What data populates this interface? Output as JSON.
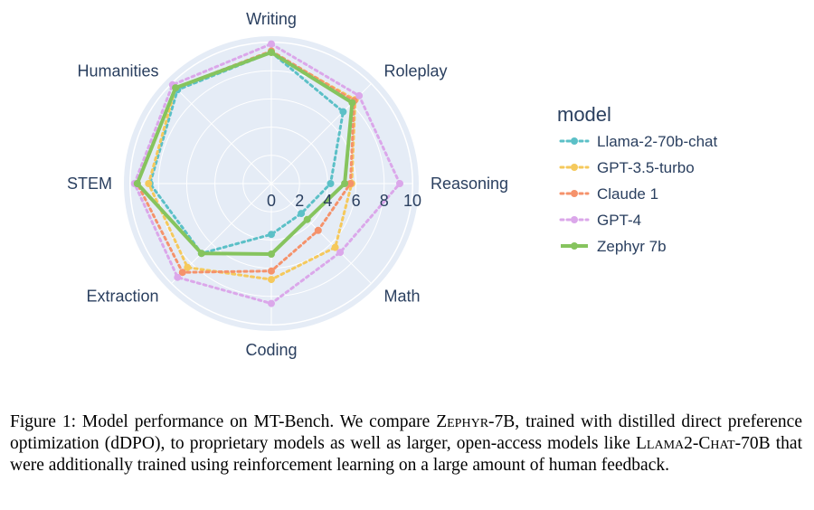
{
  "chart_data": {
    "type": "radar",
    "categories": [
      "Writing",
      "Roleplay",
      "Reasoning",
      "Math",
      "Coding",
      "Extraction",
      "STEM",
      "Humanities"
    ],
    "radial_ticks": [
      0,
      2,
      4,
      6,
      8,
      10
    ],
    "rlim": [
      0,
      10
    ],
    "legend_title": "model",
    "legend_position": "right",
    "series": [
      {
        "name": "Llama-2-70b-chat",
        "color": "#5bc0c7",
        "dash": "dot",
        "values": [
          9.3,
          7.2,
          4.2,
          3.0,
          3.6,
          7.0,
          8.6,
          9.4
        ]
      },
      {
        "name": "GPT-3.5-turbo",
        "color": "#f5c95c",
        "dash": "dot",
        "values": [
          9.3,
          8.4,
          5.7,
          6.4,
          6.8,
          8.4,
          8.7,
          9.6
        ]
      },
      {
        "name": "Claude 1",
        "color": "#f5926b",
        "dash": "dot",
        "values": [
          9.4,
          8.3,
          5.6,
          4.7,
          6.2,
          8.9,
          9.5,
          9.6
        ]
      },
      {
        "name": "GPT-4",
        "color": "#dba7ea",
        "dash": "dot",
        "values": [
          9.9,
          8.8,
          9.1,
          6.9,
          8.5,
          9.4,
          9.7,
          9.9
        ]
      },
      {
        "name": "Zephyr 7b",
        "color": "#86c45e",
        "dash": "solid",
        "values": [
          9.3,
          8.1,
          5.2,
          3.6,
          5.0,
          7.0,
          9.5,
          9.6
        ]
      }
    ]
  },
  "caption": {
    "label": "Figure 1:",
    "parts": [
      {
        "text": "Figure 1: Model performance on MT-Bench. We compare ",
        "sc": false
      },
      {
        "text": "Zephyr-7B",
        "sc": true
      },
      {
        "text": ", trained with distilled direct preference optimization (dDPO), to proprietary models as well as larger, open-access models like ",
        "sc": false
      },
      {
        "text": "Llama2-Chat-70B",
        "sc": true
      },
      {
        "text": " that were additionally trained using reinforcement learning on a large amount of human feedback.",
        "sc": false
      }
    ]
  }
}
